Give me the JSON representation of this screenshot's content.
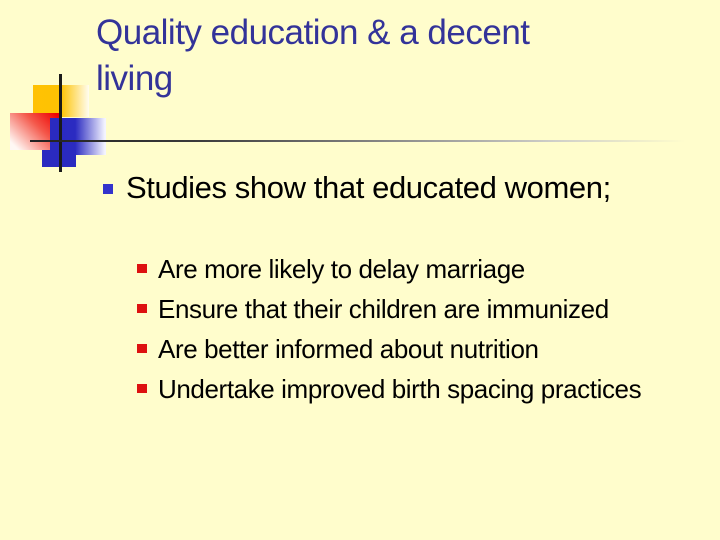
{
  "slide": {
    "title_lines": [
      "Quality education & a decent",
      "living"
    ],
    "bullets": {
      "level1": "Studies show that educated women;",
      "level2": [
        "Are more likely to delay marriage",
        "Ensure that their children are immunized",
        "Are better informed about nutrition",
        "Undertake improved birth spacing practices"
      ]
    },
    "colors": {
      "background": "#FFFDCC",
      "title_text": "#333399",
      "body_text": "#000000",
      "level1_bullet": "#3333CC",
      "level2_bullet": "#DD1111",
      "decor_yellow": "#FFC103",
      "decor_red": "#EE0202",
      "decor_blue": "#2A2AC0",
      "crosshair_line": "#1A1A1A"
    }
  }
}
